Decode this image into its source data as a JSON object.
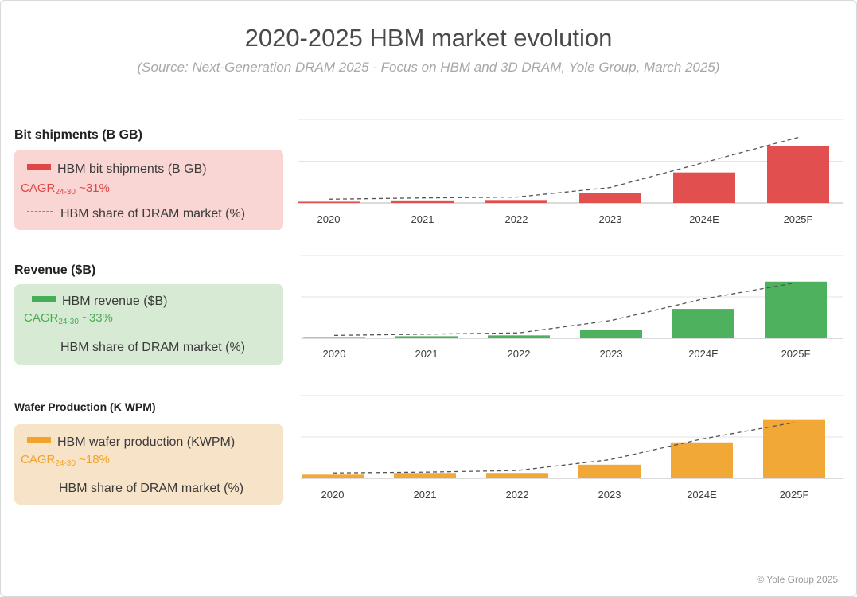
{
  "title": "2020-2025 HBM market evolution",
  "source": "(Source: Next-Generation DRAM 2025 - Focus on HBM and 3D DRAM, Yole Group, March 2025)",
  "copyright": "© Yole Group 2025",
  "colors": {
    "bits": "#e04646",
    "revenue": "#45ad55",
    "wafer": "#f1a32b",
    "bits_box": "#f9d5d3",
    "revenue_box": "#d7ebd4",
    "wafer_box": "#f7e3c8",
    "gridline": "#e3e3e3",
    "axis": "#cfcfcf",
    "trend": "#555555"
  },
  "sections": [
    {
      "title": "Bit shipments (B GB)",
      "legend_series": "HBM bit shipments (B GB)",
      "cagr_prefix": "CAGR",
      "cagr_sub": "24-30",
      "cagr_value": " ~31%",
      "legend_share": "HBM share of DRAM market (%)"
    },
    {
      "title": "Revenue ($B)",
      "legend_series": "HBM revenue ($B)",
      "cagr_prefix": "CAGR",
      "cagr_sub": "24-30",
      "cagr_value": " ~33%",
      "legend_share": "HBM share of DRAM market (%)"
    },
    {
      "title": "Wafer Production (K WPM)",
      "legend_series": "HBM wafer production (KWPM)",
      "cagr_prefix": "CAGR",
      "cagr_sub": "24-30",
      "cagr_value": " ~18%",
      "legend_share": "HBM share of DRAM market (%)"
    }
  ],
  "chart_data": [
    {
      "type": "bar",
      "title": "Bit shipments (B GB)",
      "categories": [
        "2020",
        "2021",
        "2022",
        "2023",
        "2024E",
        "2025F"
      ],
      "series": [
        {
          "name": "HBM bit shipments (B GB)",
          "values": [
            0.03,
            0.06,
            0.07,
            0.24,
            0.73,
            1.37
          ]
        },
        {
          "name": "HBM share of DRAM market (%)",
          "style": "dashed-line",
          "values": [
            0.09,
            0.12,
            0.14,
            0.37,
            0.97,
            1.57
          ]
        }
      ],
      "ylim": [
        0,
        2
      ],
      "grid": true
    },
    {
      "type": "bar",
      "title": "Revenue ($B)",
      "categories": [
        "2020",
        "2021",
        "2022",
        "2023",
        "2024E",
        "2025F"
      ],
      "series": [
        {
          "name": "HBM revenue ($B)",
          "values": [
            0.03,
            0.05,
            0.07,
            0.21,
            0.71,
            1.37
          ]
        },
        {
          "name": "HBM share of DRAM market (%)",
          "style": "dashed-line",
          "values": [
            0.07,
            0.1,
            0.13,
            0.43,
            0.95,
            1.34
          ]
        }
      ],
      "ylim": [
        0,
        2
      ],
      "grid": true
    },
    {
      "type": "bar",
      "title": "Wafer Production (K WPM)",
      "categories": [
        "2020",
        "2021",
        "2022",
        "2023",
        "2024E",
        "2025F"
      ],
      "series": [
        {
          "name": "HBM wafer production (KWPM)",
          "values": [
            0.09,
            0.13,
            0.13,
            0.33,
            0.87,
            1.41
          ]
        },
        {
          "name": "HBM share of DRAM market (%)",
          "style": "dashed-line",
          "values": [
            0.13,
            0.15,
            0.19,
            0.45,
            0.95,
            1.35
          ]
        }
      ],
      "ylim": [
        0,
        2
      ],
      "grid": true
    }
  ]
}
